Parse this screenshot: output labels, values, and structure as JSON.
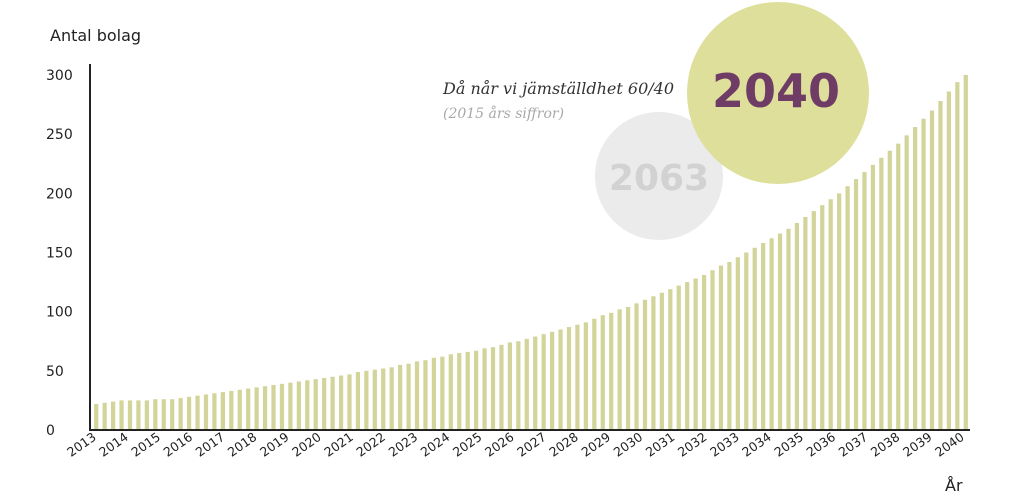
{
  "chart_data": {
    "type": "bar",
    "ylabel": "Antal bolag",
    "xlabel": "År",
    "ylim": [
      0,
      300
    ],
    "yticks": [
      "300",
      "250",
      "200",
      "150",
      "100",
      "50",
      "0"
    ],
    "ytick_values": [
      300,
      250,
      200,
      150,
      100,
      50,
      0
    ],
    "x_tick_labels": [
      "2013",
      "2014",
      "2015",
      "2016",
      "2017",
      "2018",
      "2019",
      "2020",
      "2021",
      "2022",
      "2023",
      "2024",
      "2025",
      "2026",
      "2027",
      "2028",
      "2029",
      "2030",
      "2031",
      "2032",
      "2033",
      "2034",
      "2035",
      "2036",
      "2037",
      "2038",
      "2039",
      "2040"
    ],
    "bars_per_year": 4,
    "values": [
      22,
      23,
      24,
      25,
      25,
      25,
      25,
      26,
      26,
      26,
      27,
      28,
      29,
      30,
      31,
      32,
      33,
      34,
      35,
      36,
      37,
      38,
      39,
      40,
      41,
      42,
      43,
      44,
      45,
      46,
      47,
      49,
      50,
      51,
      52,
      53,
      55,
      56,
      58,
      59,
      61,
      62,
      64,
      65,
      66,
      67,
      69,
      70,
      72,
      74,
      75,
      77,
      79,
      81,
      83,
      85,
      87,
      89,
      91,
      94,
      97,
      99,
      102,
      104,
      107,
      110,
      113,
      116,
      119,
      122,
      125,
      128,
      131,
      135,
      139,
      142,
      146,
      150,
      154,
      158,
      162,
      166,
      170,
      175,
      180,
      185,
      190,
      195,
      200,
      206,
      212,
      218,
      224,
      230,
      236,
      242,
      249,
      256,
      263,
      270,
      278,
      286,
      294,
      300
    ],
    "bar_color": "#d3d49a",
    "annotation": {
      "title": "Då når vi jämställdhet 60/40",
      "subtitle": "(2015 års siffror)",
      "target_year": "2040",
      "target_color": "#dddf9b",
      "target_text_color": "#6f3c66",
      "old_year": "2063",
      "old_color": "#ebebeb",
      "old_text_color": "#d2d2d2"
    }
  }
}
